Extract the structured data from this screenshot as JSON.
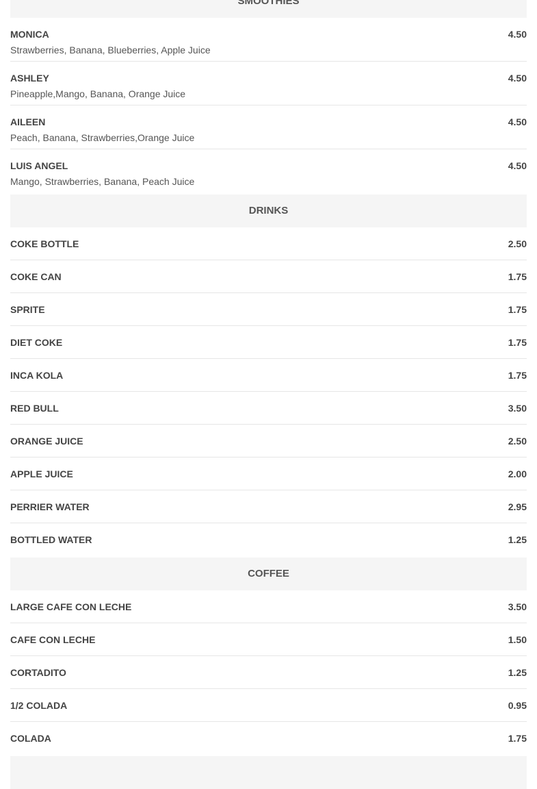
{
  "sections": [
    {
      "title": "SMOOTHIES",
      "items": [
        {
          "name": "MONICA",
          "price": "4.50",
          "desc": "Strawberries, Banana, Blueberries, Apple Juice"
        },
        {
          "name": "ASHLEY",
          "price": "4.50",
          "desc": "Pineapple,Mango, Banana, Orange Juice"
        },
        {
          "name": "AILEEN",
          "price": "4.50",
          "desc": "Peach, Banana, Strawberries,Orange Juice"
        },
        {
          "name": "LUIS ANGEL",
          "price": "4.50",
          "desc": "Mango, Strawberries, Banana, Peach Juice"
        }
      ]
    },
    {
      "title": "DRINKS",
      "items": [
        {
          "name": "COKE BOTTLE",
          "price": "2.50"
        },
        {
          "name": "COKE CAN",
          "price": "1.75"
        },
        {
          "name": "SPRITE",
          "price": "1.75"
        },
        {
          "name": "DIET COKE",
          "price": "1.75"
        },
        {
          "name": "INCA KOLA",
          "price": "1.75"
        },
        {
          "name": "RED BULL",
          "price": "3.50"
        },
        {
          "name": "ORANGE JUICE",
          "price": "2.50"
        },
        {
          "name": "APPLE JUICE",
          "price": "2.00"
        },
        {
          "name": "PERRIER WATER",
          "price": "2.95"
        },
        {
          "name": "BOTTLED WATER",
          "price": "1.25"
        }
      ]
    },
    {
      "title": "COFFEE",
      "items": [
        {
          "name": "LARGE CAFE CON LECHE",
          "price": "3.50"
        },
        {
          "name": "CAFE CON LECHE",
          "price": "1.50"
        },
        {
          "name": "CORTADITO",
          "price": "1.25"
        },
        {
          "name": "1/2 COLADA",
          "price": "0.95"
        },
        {
          "name": "COLADA",
          "price": "1.75"
        }
      ]
    },
    {
      "title": "",
      "items": []
    }
  ]
}
